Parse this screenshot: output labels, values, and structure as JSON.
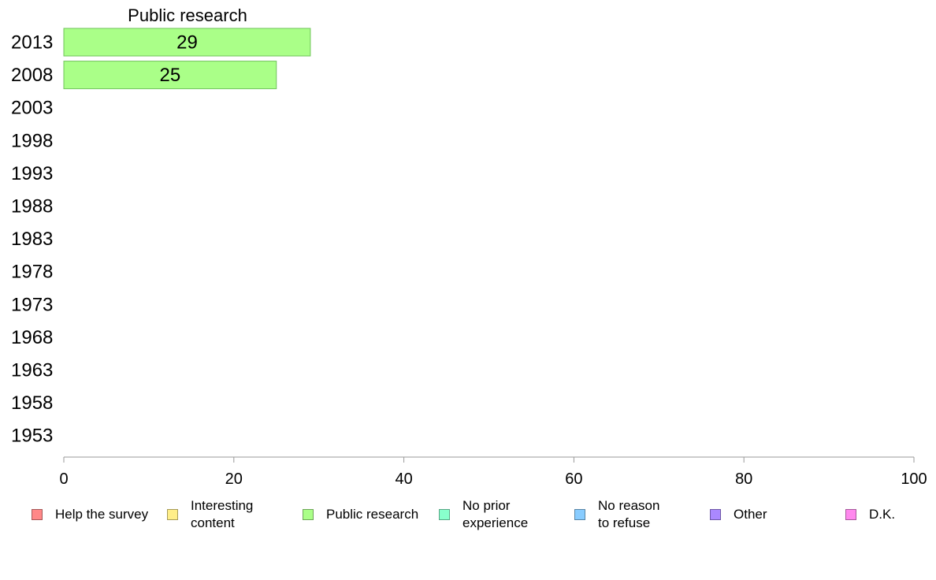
{
  "chart_data": {
    "type": "bar",
    "orientation": "horizontal",
    "title": "Public research",
    "categories": [
      "2013",
      "2008",
      "2003",
      "1998",
      "1993",
      "1988",
      "1983",
      "1978",
      "1973",
      "1968",
      "1963",
      "1958",
      "1953"
    ],
    "series": [
      {
        "name": "Public research",
        "color": "#aaff88",
        "values": [
          29,
          25,
          null,
          null,
          null,
          null,
          null,
          null,
          null,
          null,
          null,
          null,
          null
        ]
      }
    ],
    "xlim": [
      0,
      100
    ],
    "xticks": [
      "0",
      "20",
      "40",
      "60",
      "80",
      "100"
    ],
    "grid": false,
    "legend_position": "bottom",
    "legend": [
      {
        "label": "Help the survey",
        "color": "#ff8888"
      },
      {
        "label": "Interesting\ncontent",
        "color": "#ffee88"
      },
      {
        "label": "Public research",
        "color": "#aaff88"
      },
      {
        "label": "No prior\nexperience",
        "color": "#88ffcc"
      },
      {
        "label": "No reason\nto refuse",
        "color": "#88ccff"
      },
      {
        "label": "Other",
        "color": "#aa88ff"
      },
      {
        "label": "D.K.",
        "color": "#ff88ee"
      }
    ]
  }
}
